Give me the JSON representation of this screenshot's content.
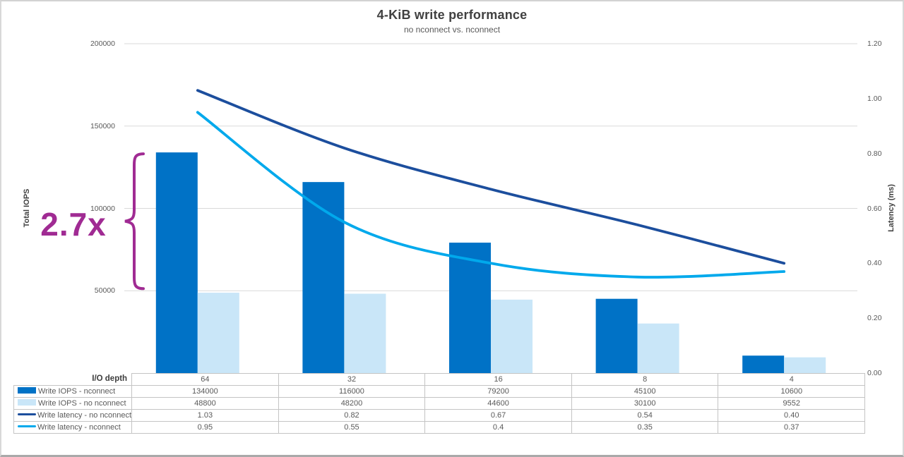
{
  "page": {
    "title": "4-KiB write performance",
    "subtitle": "no nconnect vs. nconnect"
  },
  "chart_data": {
    "type": "combo-bar-line",
    "x_header": "I/O depth",
    "categories": [
      "64",
      "32",
      "16",
      "8",
      "4"
    ],
    "bar_series": [
      {
        "name": "Write IOPS - nconnect",
        "color": "#0072C6",
        "axis": "left",
        "values": [
          134000,
          116000,
          79200,
          45100,
          10600
        ],
        "display": [
          "134000",
          "116000",
          "79200",
          "45100",
          "10600"
        ]
      },
      {
        "name": "Write IOPS - no nconnect",
        "color": "#C9E6F8",
        "axis": "left",
        "values": [
          48800,
          48200,
          44600,
          30100,
          9552
        ],
        "display": [
          "48800",
          "48200",
          "44600",
          "30100",
          "9552"
        ]
      }
    ],
    "line_series": [
      {
        "name": "Write latency - no nconnect",
        "color": "#1C4E9D",
        "axis": "right",
        "values": [
          1.03,
          0.82,
          0.67,
          0.54,
          0.4
        ],
        "display": [
          "1.03",
          "0.82",
          "0.67",
          "0.54",
          "0.40"
        ]
      },
      {
        "name": "Write latency - nconnect",
        "color": "#00A9EC",
        "axis": "right",
        "values": [
          0.95,
          0.55,
          0.4,
          0.35,
          0.37
        ],
        "display": [
          "0.95",
          "0.55",
          "0.4",
          "0.35",
          "0.37"
        ]
      }
    ],
    "left_axis": {
      "label": "Total IOPS",
      "ticks": [
        "200000",
        "150000",
        "100000",
        "50000"
      ],
      "range": [
        0,
        200000
      ]
    },
    "right_axis": {
      "label": "Latency (ms)",
      "ticks": [
        "1.20",
        "1.00",
        "0.80",
        "0.60",
        "0.40",
        "0.20",
        "0.00"
      ],
      "range": [
        0,
        1.2
      ]
    },
    "annotation": {
      "text": "2.7x",
      "color": "#A02B93"
    },
    "grid": true,
    "gridline_color": "#D9D9D9",
    "legend_position": "table-left"
  }
}
